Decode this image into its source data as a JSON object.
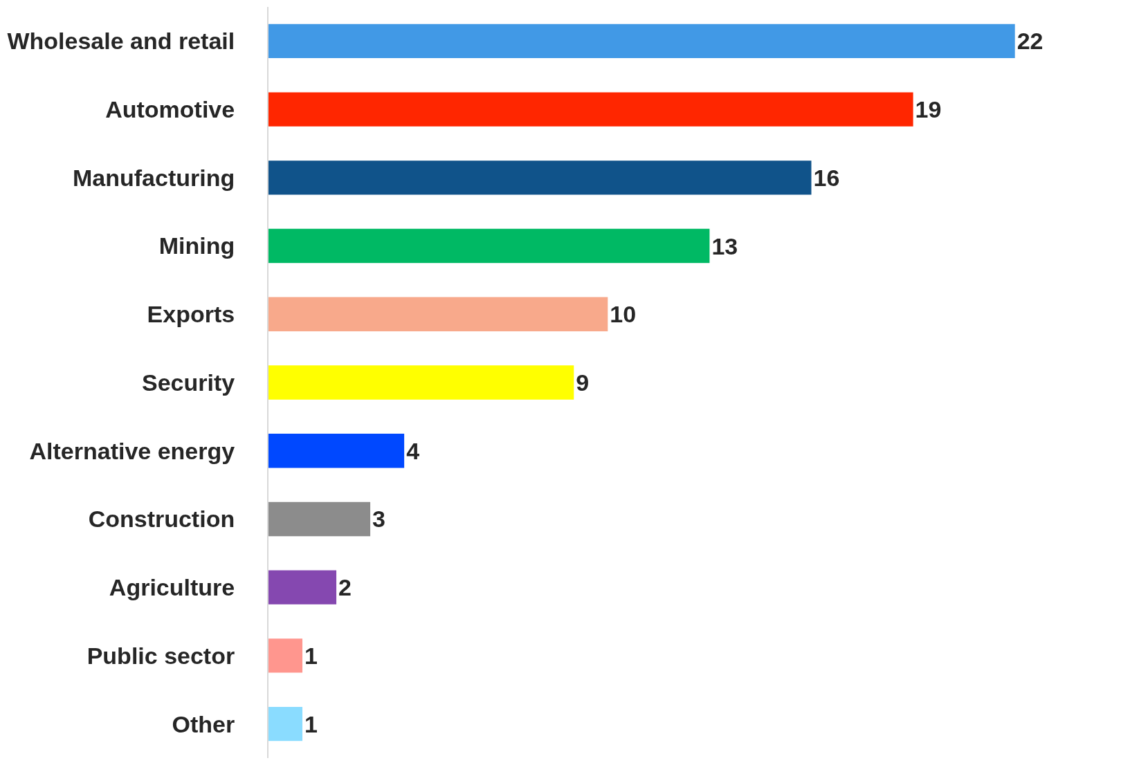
{
  "chart_data": {
    "type": "bar",
    "orientation": "horizontal",
    "categories": [
      "Wholesale and retail",
      "Automotive",
      "Manufacturing",
      "Mining",
      "Exports",
      "Security",
      "Alternative energy",
      "Construction",
      "Agriculture",
      "Public sector",
      "Other"
    ],
    "values": [
      22,
      19,
      16,
      13,
      10,
      9,
      4,
      3,
      2,
      1,
      1
    ],
    "colors": [
      "#4199e6",
      "#ff2600",
      "#10538a",
      "#00b964",
      "#f8a98b",
      "#ffff00",
      "#0048ff",
      "#8c8c8c",
      "#8548b0",
      "#ff968e",
      "#8adcff"
    ],
    "data_labels": true
  }
}
